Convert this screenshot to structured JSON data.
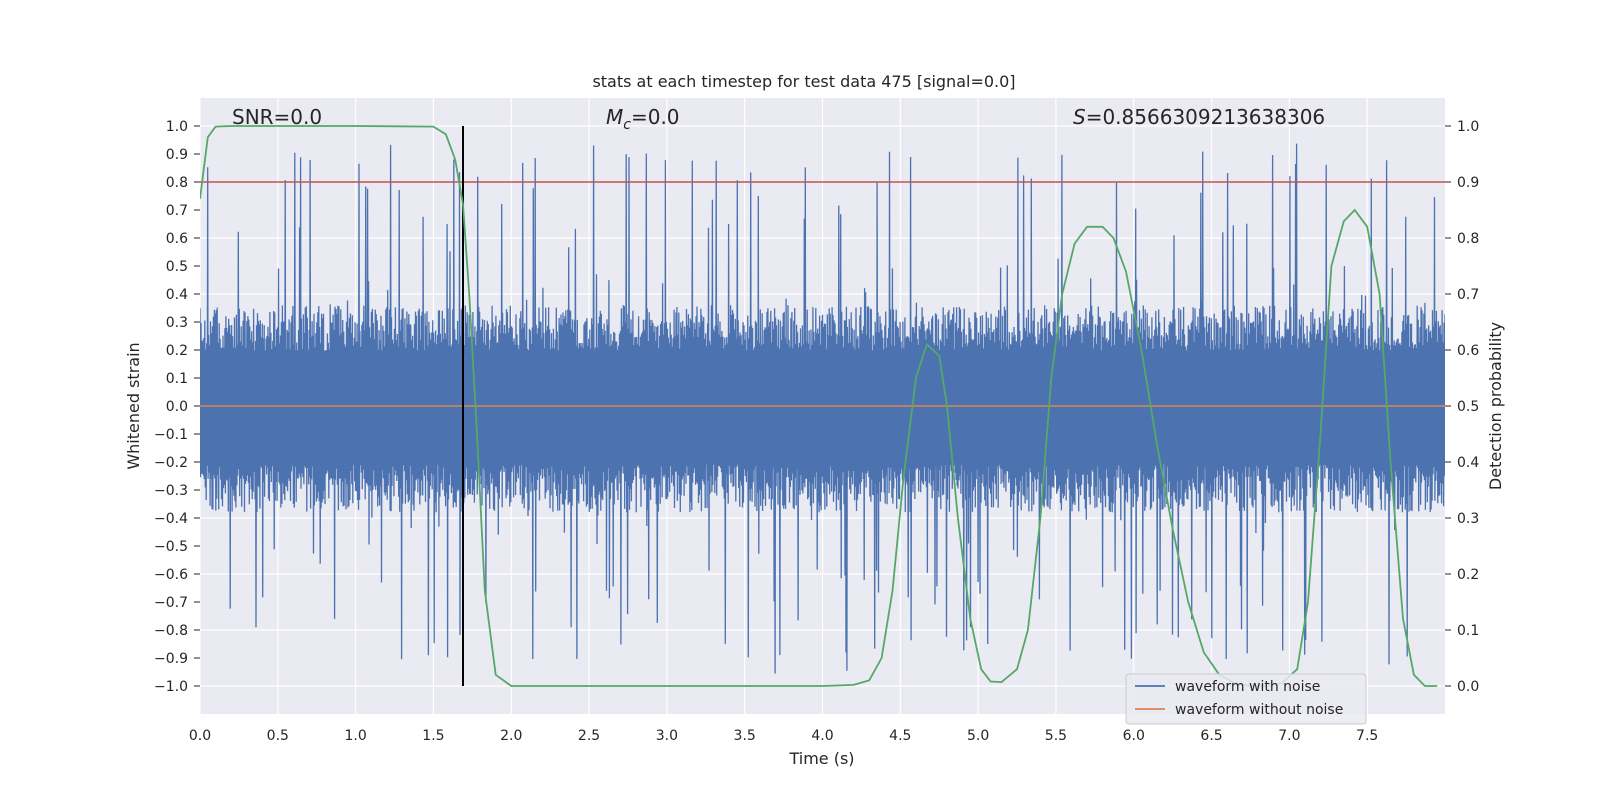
{
  "chart_data": {
    "type": "line",
    "title": "stats at each timestep for test data 475 [signal=0.0]",
    "xlabel": "Time (s)",
    "ylabel": "Whitened strain",
    "y2label": "Detection probability",
    "xlim": [
      0.0,
      8.0
    ],
    "ylim": [
      -1.1,
      1.1
    ],
    "y2lim": [
      -0.05,
      1.05
    ],
    "x_ticks": [
      0.0,
      0.5,
      1.0,
      1.5,
      2.0,
      2.5,
      3.0,
      3.5,
      4.0,
      4.5,
      5.0,
      5.5,
      6.0,
      6.5,
      7.0,
      7.5
    ],
    "x_tick_labels": [
      "0.0",
      "0.5",
      "1.0",
      "1.5",
      "2.0",
      "2.5",
      "3.0",
      "3.5",
      "4.0",
      "4.5",
      "5.0",
      "5.5",
      "6.0",
      "6.5",
      "7.0",
      "7.5"
    ],
    "y_ticks": [
      1.0,
      0.9,
      0.8,
      0.7,
      0.6,
      0.5,
      0.4,
      0.3,
      0.2,
      0.1,
      0.0,
      -0.1,
      -0.2,
      -0.3,
      -0.4,
      -0.5,
      -0.6,
      -0.7,
      -0.8,
      -0.9,
      -1.0
    ],
    "y_tick_labels": [
      "1.0",
      "0.9",
      "0.8",
      "0.7",
      "0.6",
      "0.5",
      "0.4",
      "0.3",
      "0.2",
      "0.1",
      "0.0",
      "−0.1",
      "−0.2",
      "−0.3",
      "−0.4",
      "−0.5",
      "−0.6",
      "−0.7",
      "−0.8",
      "−0.9",
      "−1.0"
    ],
    "y2_ticks": [
      1.0,
      0.9,
      0.8,
      0.7,
      0.6,
      0.5,
      0.4,
      0.3,
      0.2,
      0.1,
      0.0
    ],
    "y2_tick_labels": [
      "1.0",
      "0.9",
      "0.8",
      "0.7",
      "0.6",
      "0.5",
      "0.4",
      "0.3",
      "0.2",
      "0.1",
      "0.0"
    ],
    "annotations": {
      "snr": "SNR=0.0",
      "mc_symbol": "M",
      "mc_sub": "c",
      "mc_value": "=0.0",
      "s_symbol": "S",
      "s_value": "=0.8566309213638306"
    },
    "threshold": {
      "axis": "y2",
      "value": 0.9
    },
    "marker_line_x": 1.69,
    "series": [
      {
        "name": "waveform with noise",
        "axis": "y",
        "style": "noise",
        "typical_range": [
          -0.38,
          0.36
        ],
        "extreme_range": [
          -0.97,
          0.97
        ]
      },
      {
        "name": "waveform without noise",
        "axis": "y",
        "x": [
          0.0,
          8.0
        ],
        "values": [
          0.0,
          0.0
        ]
      },
      {
        "name": "detection probability",
        "axis": "y2",
        "x": [
          0.0,
          0.05,
          0.1,
          0.2,
          0.5,
          1.0,
          1.5,
          1.58,
          1.64,
          1.69,
          1.73,
          1.78,
          1.83,
          1.9,
          2.0,
          2.5,
          3.0,
          3.5,
          4.0,
          4.2,
          4.3,
          4.38,
          4.45,
          4.52,
          4.6,
          4.67,
          4.75,
          4.8,
          4.87,
          4.95,
          5.02,
          5.08,
          5.15,
          5.25,
          5.32,
          5.4,
          5.47,
          5.54,
          5.62,
          5.7,
          5.8,
          5.87,
          5.95,
          6.05,
          6.15,
          6.25,
          6.35,
          6.45,
          6.55,
          6.65,
          6.75,
          6.85,
          6.95,
          7.05,
          7.12,
          7.2,
          7.27,
          7.35,
          7.42,
          7.5,
          7.58,
          7.65,
          7.73,
          7.8,
          7.87,
          7.95
        ],
        "values": [
          0.87,
          0.98,
          0.999,
          1.0,
          1.0,
          1.0,
          0.999,
          0.985,
          0.94,
          0.86,
          0.7,
          0.45,
          0.17,
          0.02,
          0.0,
          0.0,
          0.0,
          0.0,
          0.0,
          0.002,
          0.01,
          0.05,
          0.17,
          0.37,
          0.55,
          0.61,
          0.59,
          0.5,
          0.3,
          0.12,
          0.03,
          0.008,
          0.007,
          0.03,
          0.1,
          0.3,
          0.55,
          0.7,
          0.79,
          0.82,
          0.82,
          0.8,
          0.74,
          0.6,
          0.43,
          0.28,
          0.15,
          0.06,
          0.02,
          0.005,
          0.0,
          0.0,
          0.005,
          0.03,
          0.15,
          0.45,
          0.75,
          0.83,
          0.85,
          0.82,
          0.7,
          0.4,
          0.12,
          0.02,
          0.0,
          0.0
        ]
      }
    ],
    "legend": {
      "position": "lower-right",
      "entries": [
        {
          "label": "waveform with noise",
          "color": "#4c72b0"
        },
        {
          "label": "waveform without noise",
          "color": "#dd8452"
        }
      ]
    },
    "colors": {
      "plot_background": "#eaeaf2",
      "grid": "#ffffff",
      "noise": "#4c72b0",
      "clean": "#dd8452",
      "probability": "#55a868",
      "threshold": "#c44e52",
      "marker": "#000000"
    }
  }
}
